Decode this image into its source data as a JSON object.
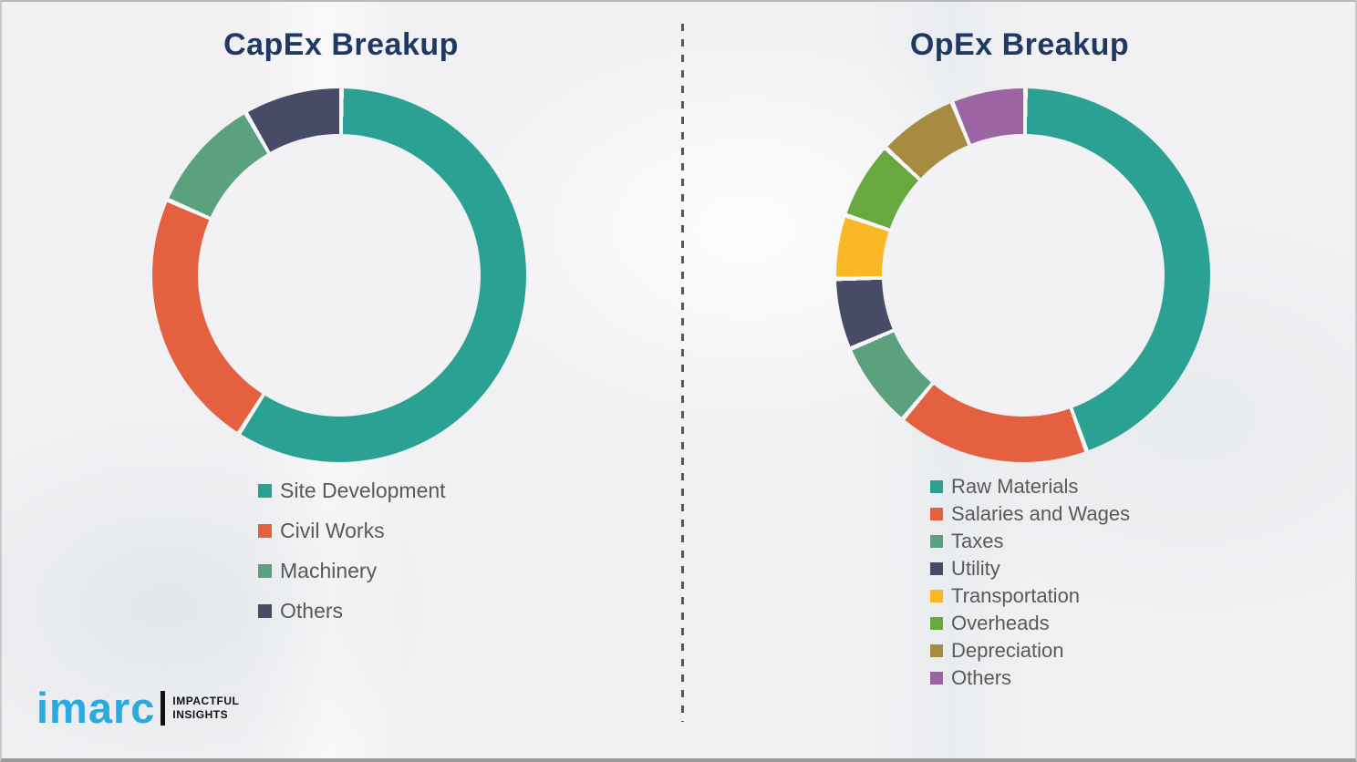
{
  "logo": {
    "wordmark": "imarc",
    "tagline_line1": "IMPACTFUL",
    "tagline_line2": "INSIGHTS"
  },
  "style_colors": {
    "title_text": "#1f3864",
    "legend_text": "#595959",
    "logo_blue": "#29aae1",
    "background": "#f1f1f3"
  },
  "chart_data": [
    {
      "type": "pie",
      "subtype": "donut",
      "title": "CapEx Breakup",
      "categories": [
        "Site Development",
        "Civil Works",
        "Machinery",
        "Others"
      ],
      "values": [
        58.8,
        22.6,
        10.1,
        8.5
      ],
      "unit": "percent",
      "colors": [
        "#2aa192",
        "#e4603e",
        "#5ba17d",
        "#474b66"
      ],
      "start_angle_deg": 0,
      "direction": "clockwise",
      "legend_position": "below"
    },
    {
      "type": "pie",
      "subtype": "donut",
      "title": "OpEx Breakup",
      "categories": [
        "Raw Materials",
        "Salaries and Wages",
        "Taxes",
        "Utility",
        "Transportation",
        "Overheads",
        "Depreciation",
        "Others"
      ],
      "values": [
        44.3,
        16.6,
        7.5,
        6.1,
        5.5,
        6.7,
        6.9,
        6.4
      ],
      "unit": "percent",
      "colors": [
        "#2aa192",
        "#e4603e",
        "#5ba17d",
        "#474b66",
        "#f9b825",
        "#68a83e",
        "#a68b40",
        "#9c64a3"
      ],
      "start_angle_deg": 0,
      "direction": "clockwise",
      "legend_position": "below"
    }
  ]
}
